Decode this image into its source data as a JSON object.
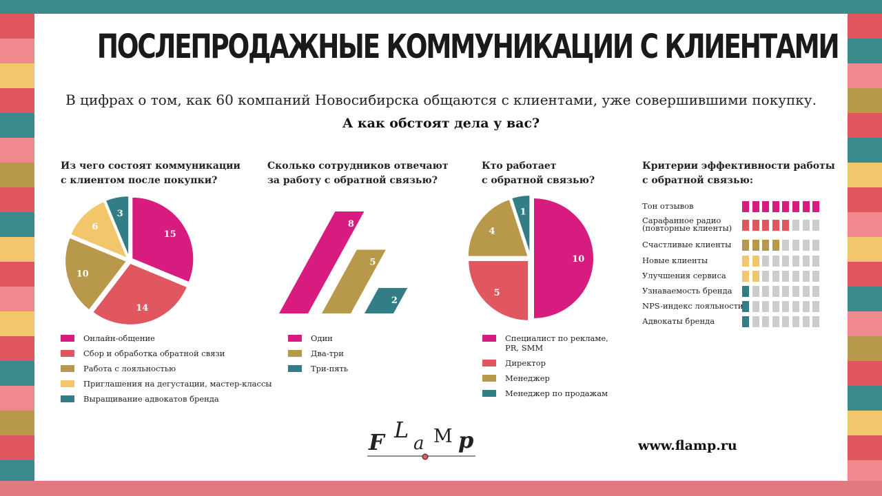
{
  "header": {
    "title": "ПОСЛЕПРОДАЖНЫЕ КОММУНИКАЦИИ С КЛИЕНТАМИ",
    "subtitle": "В цифрах о том, как 60 компаний Новосибирска общаются с клиентами, уже совершившими покупку.",
    "question": "А как обстоят дела у вас?"
  },
  "palette": {
    "magenta": "#d81b7e",
    "coral": "#e0575f",
    "olive": "#b8984a",
    "yellow": "#f2c76b",
    "teal": "#337e86",
    "gray": "#cccccc",
    "frame": "#3a8a8c"
  },
  "chart_data": [
    {
      "type": "pie",
      "title_lines": [
        "Из чего состоят коммуникации",
        "с клиентом после покупки?"
      ],
      "categories": [
        "Онлайн-общение",
        "Сбор и обработка обратной связи",
        "Работа с лояльностью",
        "Приглашения на дегустации, мастер-классы",
        "Выращивание адвокатов бренда"
      ],
      "values": [
        15,
        14,
        10,
        6,
        3
      ],
      "colors": [
        "#d81b7e",
        "#e0575f",
        "#b8984a",
        "#f2c76b",
        "#337e86"
      ],
      "legend": "bottom"
    },
    {
      "type": "bar",
      "title_lines": [
        "Сколько сотрудников отвечают",
        "за работу с обратной связью?"
      ],
      "categories": [
        "Один",
        "Два-три",
        "Три-пять"
      ],
      "values": [
        8,
        5,
        2
      ],
      "colors": [
        "#d81b7e",
        "#b8984a",
        "#337e86"
      ],
      "legend": "bottom"
    },
    {
      "type": "pie",
      "title_lines": [
        "Кто работает",
        "с обратной связью?"
      ],
      "categories": [
        "Специалист по рекламе, PR, SMM",
        "Директор",
        "Менеджер",
        "Менеджер по продажам"
      ],
      "legend_lines": [
        [
          "Специалист по рекламе,",
          "PR, SMM"
        ],
        [
          "Директор"
        ],
        [
          "Менеджер"
        ],
        [
          "Менеджер по продажам"
        ]
      ],
      "values": [
        10,
        5,
        4,
        1
      ],
      "colors": [
        "#d81b7e",
        "#e0575f",
        "#b8984a",
        "#337e86"
      ],
      "legend": "bottom"
    },
    {
      "type": "table",
      "title_lines": [
        "Критерии эффективности работы",
        "с обратной связью:"
      ],
      "max": 8,
      "rows": [
        {
          "label_lines": [
            "Тон отзывов"
          ],
          "value": 8,
          "color": "#d81b7e"
        },
        {
          "label_lines": [
            "Сарафанное радио",
            "(повторные клиенты)"
          ],
          "value": 5,
          "color": "#e0575f"
        },
        {
          "label_lines": [
            "Счастливые клиенты"
          ],
          "value": 4,
          "color": "#b8984a"
        },
        {
          "label_lines": [
            "Новые клиенты"
          ],
          "value": 2,
          "color": "#f2c76b"
        },
        {
          "label_lines": [
            "Улучшения сервиса"
          ],
          "value": 2,
          "color": "#f2c76b"
        },
        {
          "label_lines": [
            "Узнаваемость бренда"
          ],
          "value": 1,
          "color": "#337e86"
        },
        {
          "label_lines": [
            "NPS-индекс лояльности"
          ],
          "value": 1,
          "color": "#337e86"
        },
        {
          "label_lines": [
            "Адвокаты бренда"
          ],
          "value": 1,
          "color": "#337e86"
        }
      ]
    }
  ],
  "logo": {
    "letters": [
      "F",
      "L",
      "a",
      "M",
      "p"
    ]
  },
  "footer": {
    "site": "www.flamp.ru"
  }
}
